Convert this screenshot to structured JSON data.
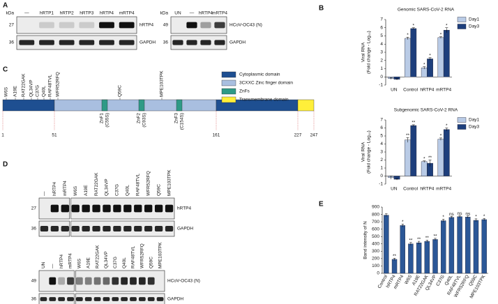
{
  "panel_letters": [
    "A",
    "B",
    "C",
    "D",
    "E"
  ],
  "blot_a": {
    "left": {
      "kda": "kDa",
      "lanes": [
        "—",
        "hRTP1",
        "hRTP2",
        "hRTP3",
        "hRTP4",
        "mRTP4"
      ],
      "markers": [
        "27",
        "36"
      ],
      "proteins": [
        "hRTP4",
        "GAPDH"
      ]
    },
    "right": {
      "kda": "kDa",
      "lanes": [
        "UN",
        "—",
        "hRTP4",
        "mRTP4"
      ],
      "markers": [
        "49",
        "36"
      ],
      "proteins": [
        "HCoV-OC43 (N)",
        "GAPDH"
      ]
    }
  },
  "diagram": {
    "mutations": [
      "W6S",
      "A19E",
      "RAT22GAK",
      "QL34VP",
      "C37G",
      "Q40L",
      "RAF48TVL",
      "WFR52RFQ",
      "Q59C",
      "MPE103TPK"
    ],
    "znfs": [
      {
        "name": "ZnF1",
        "mutation": "(C55S)"
      },
      {
        "name": "ZnF2",
        "mutation": "(C93S)"
      },
      {
        "name": "ZnF3",
        "mutation": "(C154S)"
      }
    ],
    "positions": [
      1,
      51,
      161,
      227,
      247
    ],
    "legend": [
      "Cytoplasmic domain",
      "3CXXC Zinc finger domain",
      "ZnFs",
      "Transmembrane domain"
    ]
  },
  "blot_d": {
    "top": {
      "lanes": [
        "—",
        "hRTP4",
        "mRTP4",
        "W6S",
        "A19E",
        "RAT22GAK",
        "QL34VP",
        "C37G",
        "Q40L",
        "RAF48TVL",
        "WFR52RFQ",
        "Q59C",
        "MPE103TPK"
      ],
      "markers": [
        "27",
        "36"
      ],
      "proteins": [
        "hRTP4",
        "GAPDH"
      ]
    },
    "bottom": {
      "lanes": [
        "UN",
        "—",
        "hRTP4",
        "mRTP4",
        "W6S",
        "A19E",
        "RAT22GAK",
        "QL34VP",
        "C37G",
        "Q40L",
        "RAF48TVL",
        "WFR52RFQ",
        "Q59C",
        "MPE103TPK"
      ],
      "markers": [
        "49",
        "36"
      ],
      "proteins": [
        "HCoV-OC43 (N)",
        "GAPDH"
      ]
    }
  },
  "chart_data": [
    {
      "type": "bar",
      "title": "Genomic SARS-CoV-2 RNA",
      "ylabel": [
        "Viral RNA",
        "(Fold change - Log₁₀)"
      ],
      "categories": [
        "UN",
        "Control",
        "hRTP4",
        "mRTP4"
      ],
      "series": [
        {
          "name": "Day1",
          "color": "#b9cbe6",
          "values": [
            -0.2,
            4.7,
            1.1,
            4.8
          ],
          "errors": [
            0.1,
            0.15,
            0.15,
            0.1
          ],
          "annotations": [
            null,
            "*",
            "*",
            "*"
          ]
        },
        {
          "name": "Day3",
          "color": "#1e3f7c",
          "values": [
            -0.3,
            5.9,
            2.2,
            5.7
          ],
          "errors": [
            0.1,
            0.1,
            0.15,
            0.3
          ],
          "annotations": [
            null,
            "*",
            "*",
            "*"
          ]
        }
      ],
      "ylim": [
        -1,
        7
      ],
      "yticks": [
        -1,
        0,
        1,
        2,
        3,
        4,
        5,
        6,
        7
      ],
      "legend": "upper right"
    },
    {
      "type": "bar",
      "title": "Subgenomic SARS-CoV-2 RNA",
      "ylabel": [
        "Viral RNA",
        "(Fold change - Log₁₀)"
      ],
      "categories": [
        "UN",
        "Control",
        "hRTP4",
        "mRTP4"
      ],
      "series": [
        {
          "name": "Day1",
          "color": "#b9cbe6",
          "values": [
            -0.2,
            4.5,
            1.8,
            4.6
          ],
          "errors": [
            0.2,
            0.3,
            0.1,
            0.15
          ],
          "annotations": [
            null,
            "**",
            "*",
            "*"
          ]
        },
        {
          "name": "Day3",
          "color": "#1e3f7c",
          "values": [
            -0.4,
            6.3,
            1.6,
            5.8
          ],
          "errors": [
            0.1,
            0.1,
            0.4,
            0.2
          ],
          "annotations": [
            null,
            "**",
            "**",
            "*"
          ]
        }
      ],
      "ylim": [
        -1,
        7
      ],
      "yticks": [
        -1,
        0,
        1,
        2,
        3,
        4,
        5,
        6,
        7
      ],
      "legend": "upper right"
    },
    {
      "type": "bar",
      "ylabel": [
        "Band intensity of N"
      ],
      "xtick_rotation": 60,
      "categories": [
        "Control",
        "hRTP4",
        "mRTP4",
        "W6S",
        "A19E",
        "RAT22GAK",
        "QL34VP",
        "C37G",
        "Q40L",
        "RAF48TVL",
        "WFR52RFQ",
        "Q59C",
        "MPE103TPK"
      ],
      "series": [
        {
          "color": "#2b5797",
          "values": [
            790,
            190,
            650,
            400,
            415,
            435,
            460,
            715,
            760,
            770,
            765,
            720,
            730
          ],
          "errors": [
            20,
            15,
            20,
            20,
            20,
            15,
            15,
            20,
            15,
            15,
            15,
            20,
            15
          ],
          "annotations": [
            null,
            "**",
            "*",
            "**",
            "**",
            "**",
            "**",
            "*",
            "ns",
            "ns",
            "ns",
            "*",
            "*"
          ]
        }
      ],
      "ylim": [
        0,
        900
      ],
      "yticks": [
        0,
        100,
        200,
        300,
        400,
        500,
        600,
        700,
        800,
        900
      ]
    }
  ]
}
